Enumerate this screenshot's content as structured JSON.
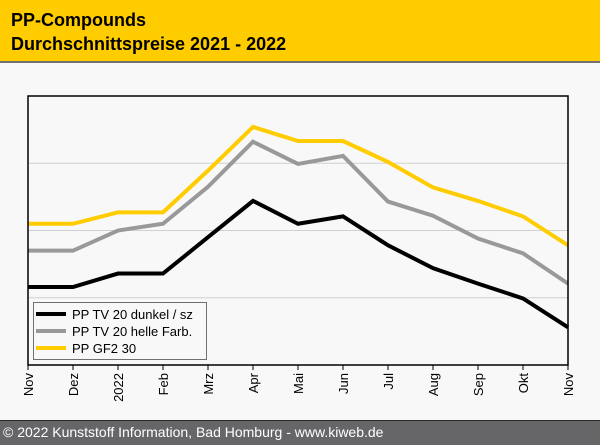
{
  "header": {
    "title": "PP-Compounds",
    "subtitle": "Durchschnittspreise 2021 - 2022"
  },
  "footer": {
    "copyright": "© 2022 Kunststoff Information, Bad Homburg - www.kiweb.de"
  },
  "colors": {
    "header_bg": "#ffcc00",
    "footer_bg": "#666669",
    "grid": "#d0d0d0"
  },
  "chart_data": {
    "type": "line",
    "title": "PP-Compounds Durchschnittspreise 2021 - 2022",
    "xlabel": "",
    "ylabel": "",
    "categories": [
      "Nov",
      "Dez",
      "2022",
      "Feb",
      "Mrz",
      "Apr",
      "Mai",
      "Jun",
      "Jul",
      "Aug",
      "Sep",
      "Okt",
      "Nov"
    ],
    "ylim": [
      0,
      4
    ],
    "y_gridlines": [
      1,
      2,
      3
    ],
    "grid": true,
    "y_tick_labels_shown": false,
    "legend_position": "bottom-left",
    "series": [
      {
        "name": "PP TV 20 dunkel / sz",
        "color": "#000000",
        "values": [
          1.16,
          1.16,
          1.36,
          1.36,
          1.9,
          2.44,
          2.1,
          2.21,
          1.78,
          1.44,
          1.21,
          0.99,
          0.56
        ]
      },
      {
        "name": "PP TV 20 helle Farb.",
        "color": "#999999",
        "values": [
          1.7,
          1.7,
          2.0,
          2.1,
          2.65,
          3.32,
          2.99,
          3.11,
          2.43,
          2.22,
          1.88,
          1.66,
          1.21
        ]
      },
      {
        "name": "PP GF2 30",
        "color": "#ffcc00",
        "values": [
          2.1,
          2.1,
          2.27,
          2.27,
          2.89,
          3.54,
          3.33,
          3.33,
          3.02,
          2.64,
          2.44,
          2.21,
          1.78
        ]
      }
    ]
  }
}
